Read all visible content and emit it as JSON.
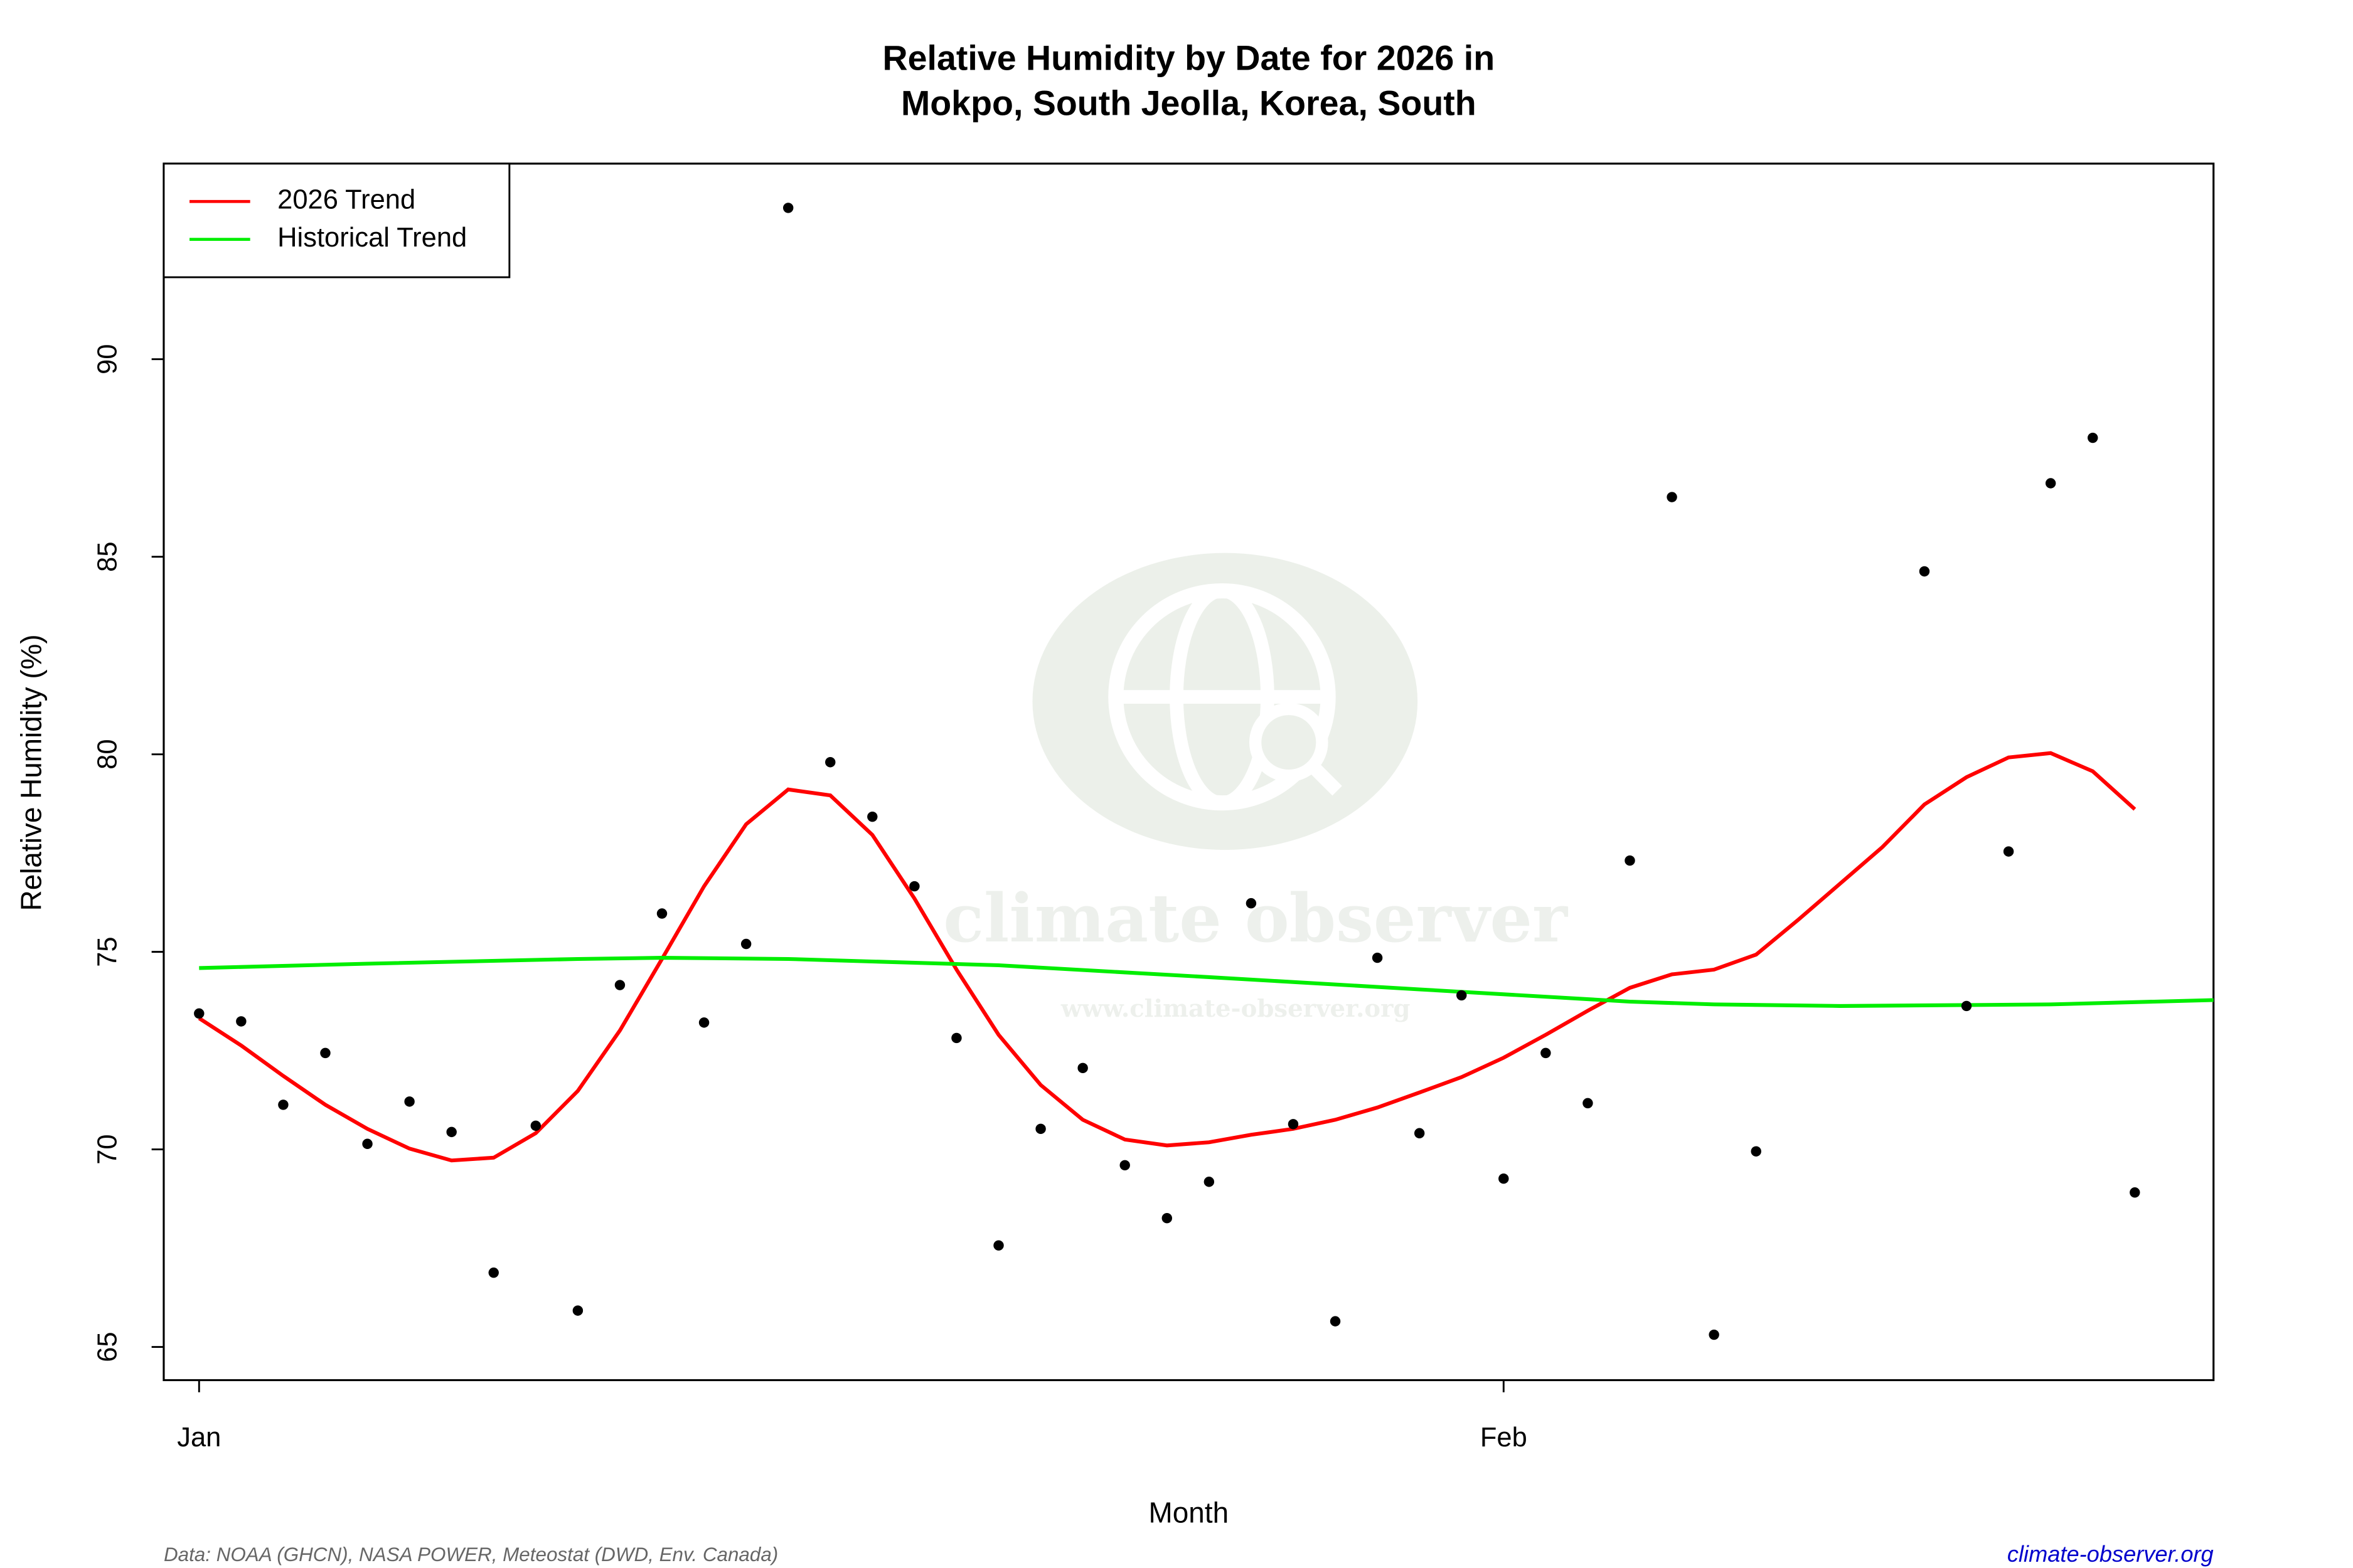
{
  "chart_data": {
    "type": "scatter",
    "title": [
      "Relative Humidity by Date for 2026 in",
      "Mokpo, South Jeolla, Korea, South"
    ],
    "x_label": "Month",
    "y_label": "Relative Humidity (%)",
    "x": [
      1,
      2,
      3,
      4,
      5,
      6,
      7,
      8,
      9,
      10,
      11,
      12,
      13,
      14,
      15,
      16,
      17,
      18,
      19,
      20,
      21,
      22,
      23,
      24,
      25,
      26,
      27,
      28,
      29,
      30,
      31,
      32,
      33,
      34,
      35,
      36,
      37,
      38,
      39,
      40,
      41,
      42,
      43,
      44,
      45,
      46,
      47
    ],
    "points": {
      "color": "#000000",
      "values": [
        73.44,
        73.24,
        71.13,
        72.44,
        70.14,
        71.21,
        70.44,
        66.88,
        70.6,
        65.92,
        74.16,
        75.97,
        73.21,
        75.2,
        93.83,
        79.8,
        78.42,
        76.66,
        72.82,
        67.57,
        70.52,
        72.06,
        69.6,
        68.26,
        69.18,
        76.23,
        70.64,
        65.65,
        74.85,
        70.41,
        73.9,
        69.26,
        72.44,
        71.17,
        77.31,
        86.51,
        65.31,
        69.95,
        null,
        null,
        null,
        84.63,
        73.63,
        77.54,
        86.86,
        88.01,
        68.91
      ]
    },
    "series": [
      {
        "name": "2026 Trend",
        "color": "#ff0000",
        "x": [
          1,
          2,
          3,
          4,
          5,
          6,
          7,
          8,
          9,
          10,
          11,
          12,
          13,
          14,
          15,
          16,
          17,
          18,
          19,
          20,
          21,
          22,
          23,
          24,
          25,
          26,
          27,
          28,
          29,
          30,
          31,
          32,
          33,
          34,
          35,
          36,
          37,
          38,
          39,
          40,
          41,
          42,
          43,
          44,
          45,
          46,
          47
        ],
        "values": [
          73.32,
          72.63,
          71.86,
          71.13,
          70.52,
          70.02,
          69.72,
          69.79,
          70.41,
          71.48,
          73.01,
          74.82,
          76.66,
          78.23,
          79.11,
          78.96,
          77.96,
          76.35,
          74.55,
          72.9,
          71.63,
          70.75,
          70.25,
          70.1,
          70.18,
          70.37,
          70.52,
          70.75,
          71.06,
          71.44,
          71.83,
          72.32,
          72.9,
          73.51,
          74.09,
          74.43,
          74.55,
          74.93,
          75.81,
          76.73,
          77.65,
          78.73,
          79.42,
          79.92,
          80.03,
          79.57,
          78.61
        ]
      },
      {
        "name": "Historical Trend",
        "color": "#00ee00",
        "x": [
          1,
          5,
          10,
          12,
          15,
          20,
          25,
          30,
          35,
          37,
          40,
          45,
          48.87
        ],
        "values": [
          74.59,
          74.7,
          74.82,
          74.85,
          74.82,
          74.66,
          74.36,
          74.05,
          73.74,
          73.67,
          73.63,
          73.67,
          73.78
        ]
      }
    ],
    "xlim": [
      0.16,
      48.87
    ],
    "xticks": [
      {
        "value": 1,
        "label": "Jan"
      },
      {
        "value": 32,
        "label": "Feb"
      }
    ],
    "ylim": [
      64.16,
      94.95
    ],
    "yticks": [
      65,
      70,
      75,
      80,
      85,
      90
    ],
    "legend": "top-left",
    "watermark": [
      "climate observer",
      "www.climate-observer.org"
    ],
    "source": "Data: NOAA (GHCN), NASA POWER, Meteostat (DWD, Env. Canada)",
    "site": "climate-observer.org"
  }
}
